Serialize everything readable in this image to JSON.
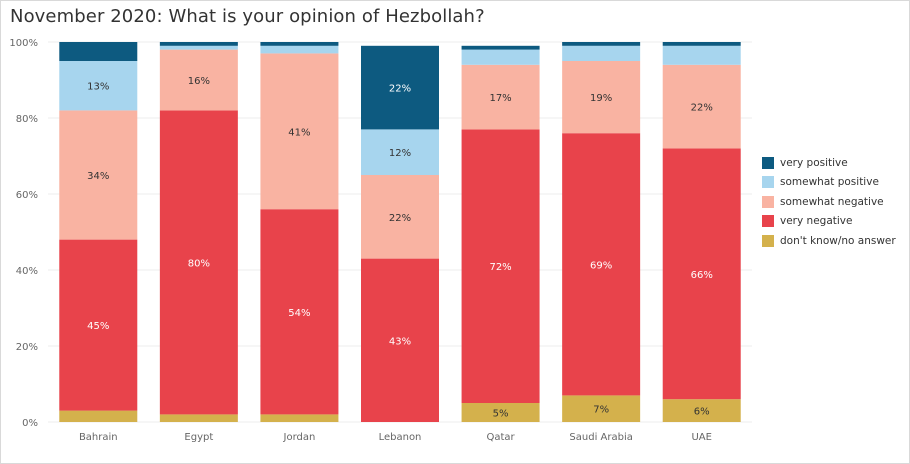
{
  "title": "November 2020: What is your opinion of Hezbollah?",
  "chart_data": {
    "type": "bar",
    "stacked": true,
    "title": "November 2020: What is your opinion of Hezbollah?",
    "xlabel": "",
    "ylabel": "",
    "ylim": [
      0,
      100
    ],
    "y_ticks": [
      "0%",
      "20%",
      "40%",
      "60%",
      "80%",
      "100%"
    ],
    "categories": [
      "Bahrain",
      "Egypt",
      "Jordan",
      "Lebanon",
      "Qatar",
      "Saudi Arabia",
      "UAE"
    ],
    "series": [
      {
        "name": "don't know/no answer",
        "color": "#d4b14c",
        "values": [
          3,
          2,
          2,
          0,
          5,
          7,
          6
        ],
        "labels": [
          "",
          "",
          "",
          "",
          "5%",
          "7%",
          "6%"
        ]
      },
      {
        "name": "very negative",
        "color": "#e8434b",
        "values": [
          45,
          80,
          54,
          43,
          72,
          69,
          66
        ],
        "labels": [
          "45%",
          "80%",
          "54%",
          "43%",
          "72%",
          "69%",
          "66%"
        ]
      },
      {
        "name": "somewhat negative",
        "color": "#f9b3a2",
        "values": [
          34,
          16,
          41,
          22,
          17,
          19,
          22
        ],
        "labels": [
          "34%",
          "16%",
          "41%",
          "22%",
          "17%",
          "19%",
          "22%"
        ]
      },
      {
        "name": "somewhat positive",
        "color": "#a7d5ee",
        "values": [
          13,
          1,
          2,
          12,
          4,
          4,
          5
        ],
        "labels": [
          "13%",
          "",
          "",
          "12%",
          "",
          "",
          ""
        ]
      },
      {
        "name": "very positive",
        "color": "#0d5a80",
        "values": [
          5,
          1,
          1,
          22,
          1,
          1,
          1
        ],
        "labels": [
          "",
          "",
          "",
          "22%",
          "",
          "",
          ""
        ]
      }
    ],
    "legend_order": [
      "very positive",
      "somewhat positive",
      "somewhat negative",
      "very negative",
      "don't know/no answer"
    ],
    "legend_position": "right",
    "grid": true
  }
}
